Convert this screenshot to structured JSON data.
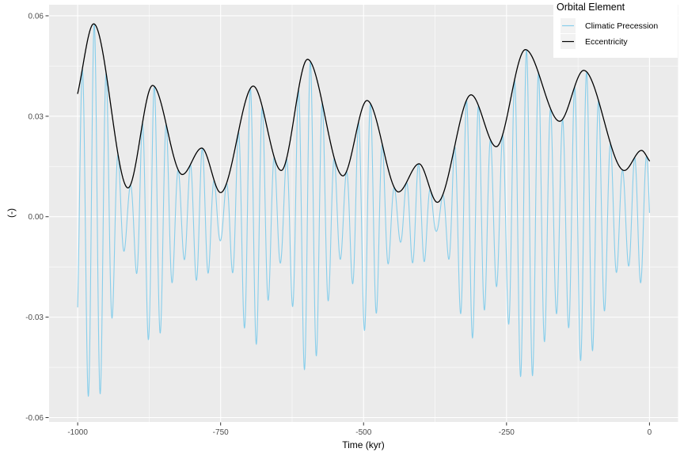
{
  "chart_data": {
    "type": "line",
    "title": "",
    "xlabel": "Time (kyr)",
    "ylabel": "(-)",
    "xlim": [
      -1050,
      50
    ],
    "ylim": [
      -0.0613,
      0.0633
    ],
    "x_ticks": [
      -1000,
      -750,
      -500,
      -250,
      0
    ],
    "x_tick_labels": [
      "-1000",
      "-750",
      "-500",
      "-250",
      "0"
    ],
    "x_minor_ticks": [
      -875,
      -625,
      -375,
      -125
    ],
    "y_ticks": [
      0.06,
      0.03,
      0,
      -0.03,
      -0.06
    ],
    "y_tick_labels": [
      "0.06",
      "0.03",
      "0.00",
      "-0.03",
      "-0.06"
    ],
    "y_minor_ticks": [
      0.045,
      0.015,
      -0.015,
      -0.045
    ],
    "grid": "major and minor white gridlines on gray panel",
    "legend": {
      "title": "Orbital Element",
      "position": "top-right",
      "entries": [
        {
          "label": "Climatic Precession",
          "color": "#87CEEB"
        },
        {
          "label": "Eccentricity",
          "color": "#000000"
        }
      ]
    },
    "series": [
      {
        "name": "Climatic Precession",
        "color": "#87CEEB",
        "width": 1.1,
        "model": {
          "kind": "amplitude-modulated-cosine",
          "period_kyr": 21,
          "peak_time_kyr": -971,
          "envelope": "Eccentricity",
          "sample_step_kyr": 0.5,
          "t_range_kyr": [
            -1000,
            0
          ]
        }
      },
      {
        "name": "Eccentricity",
        "color": "#000000",
        "width": 1.3,
        "interpolation": "smooth-through-extrema",
        "sample_step_kyr": 1,
        "keypoints": [
          [
            -1000,
            0.0368
          ],
          [
            -972,
            0.0576
          ],
          [
            -912,
            0.0086
          ],
          [
            -869,
            0.0392
          ],
          [
            -817,
            0.0126
          ],
          [
            -783,
            0.0205
          ],
          [
            -750,
            0.0072
          ],
          [
            -693,
            0.039
          ],
          [
            -644,
            0.0138
          ],
          [
            -598,
            0.047
          ],
          [
            -536,
            0.0122
          ],
          [
            -494,
            0.0347
          ],
          [
            -439,
            0.0074
          ],
          [
            -403,
            0.0158
          ],
          [
            -371,
            0.0043
          ],
          [
            -312,
            0.0364
          ],
          [
            -268,
            0.0209
          ],
          [
            -217,
            0.0499
          ],
          [
            -157,
            0.0285
          ],
          [
            -115,
            0.0437
          ],
          [
            -44,
            0.0138
          ],
          [
            -14,
            0.0198
          ],
          [
            0,
            0.0167
          ]
        ]
      }
    ],
    "colors": {
      "panel_background": "#EBEBEB",
      "gridline": "#FFFFFF",
      "tick_text": "#4D4D4D",
      "axis_title_text": "#000000",
      "tick_mark": "#333333",
      "legend_key_background": "#F2F2F2",
      "figure_background": "#FFFFFF"
    }
  }
}
